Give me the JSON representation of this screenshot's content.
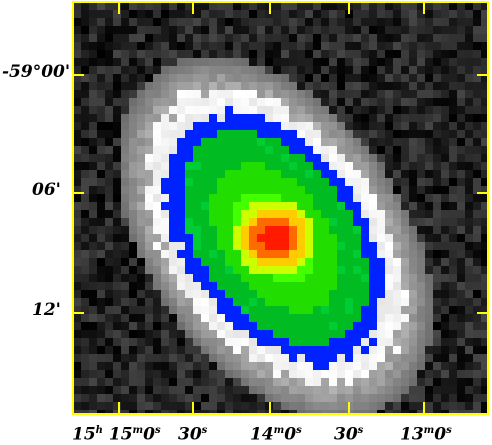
{
  "image": {
    "subject": "sky image with color-mapped intensity and RA/Dec coordinate frame",
    "colormap": [
      "#000000",
      "#ffffff",
      "#0000ff",
      "#00ff00",
      "#ffff00",
      "#ff0000"
    ],
    "frame_color": "#ffff00",
    "background_color": "#000000"
  },
  "dec_labels": [
    "-59°00'",
    "06'",
    "12'"
  ],
  "ra_labels": [
    {
      "h": "15",
      "h_unit": "h",
      "m": "15",
      "m_unit": "m",
      "s": "0",
      "s_unit": "s"
    },
    {
      "s": "30",
      "s_unit": "s"
    },
    {
      "m": "14",
      "m_unit": "m",
      "s": "0",
      "s_unit": "s"
    },
    {
      "s": "30",
      "s_unit": "s"
    },
    {
      "m": "13",
      "m_unit": "m",
      "s": "0",
      "s_unit": "s"
    }
  ]
}
